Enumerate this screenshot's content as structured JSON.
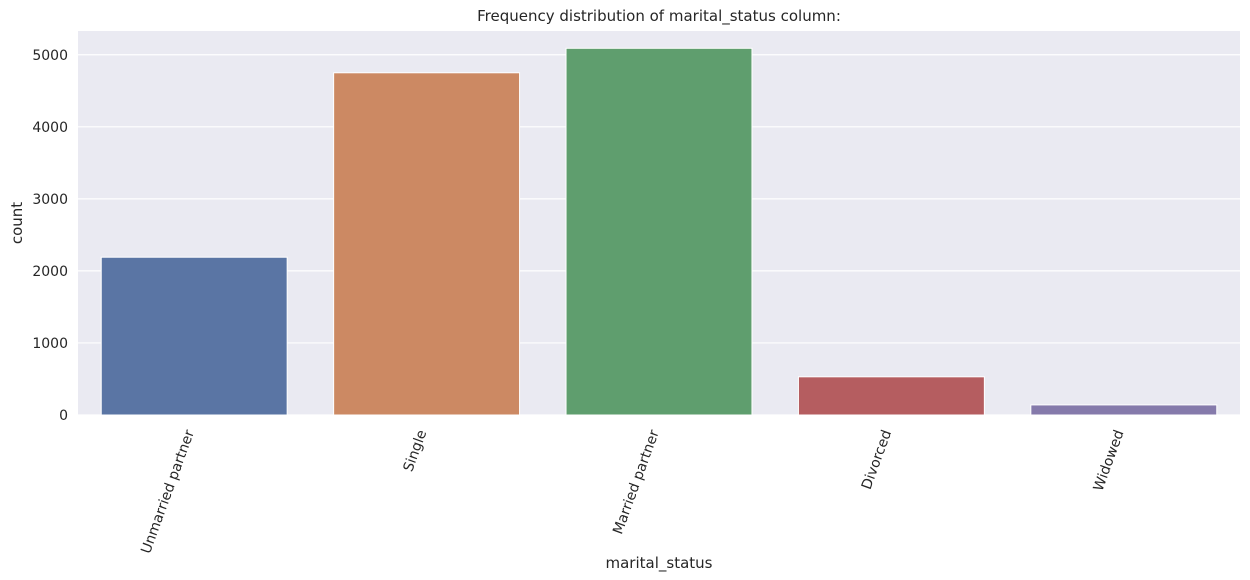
{
  "chart_data": {
    "type": "bar",
    "title": "Frequency distribution of marital_status column:",
    "xlabel": "marital_status",
    "ylabel": "count",
    "categories": [
      "Unmarried partner",
      "Single",
      "Married partner",
      "Divorced",
      "Widowed"
    ],
    "values": [
      2190,
      4750,
      5090,
      530,
      140
    ],
    "colors": [
      "#5a75a4",
      "#cc8963",
      "#5f9e6e",
      "#b55d60",
      "#857aab"
    ],
    "ylim": [
      0,
      5330
    ],
    "yticks": [
      0,
      1000,
      2000,
      3000,
      4000,
      5000
    ],
    "grid": true,
    "background": "#eaeaf2",
    "gridColor": "#ffffff"
  }
}
